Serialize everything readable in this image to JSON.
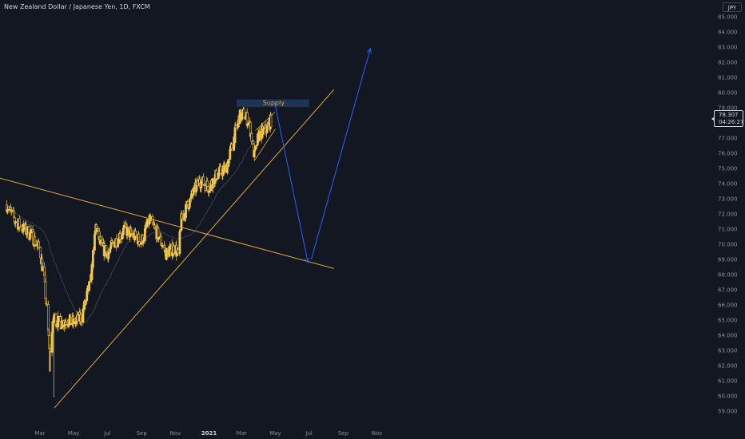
{
  "header": {
    "symbol_title": "New Zealand Dollar / Japanese Yen, 1D, FXCM"
  },
  "price_scale": {
    "currency": "JPY",
    "last_price": "78.307",
    "countdown": "04:26:27"
  },
  "colors": {
    "background": "#131722",
    "candle": "#f7c948",
    "trendline": "#e0a93a",
    "moving_average": "#2a3140",
    "zone_fill": "#1e3a5f",
    "zone_text": "#e0a93a",
    "projection": "#2962ff",
    "axis_text": "#8a8f9c"
  },
  "chart_data": {
    "type": "line",
    "title": "New Zealand Dollar / Japanese Yen, 1D, FXCM",
    "xlabel": "",
    "ylabel": "",
    "x_ticks": [
      "Mar",
      "May",
      "Jul",
      "Sep",
      "Nov",
      "2021",
      "Mar",
      "May",
      "Jul",
      "Sep",
      "Nov"
    ],
    "y_ticks": [
      "59.000",
      "60.000",
      "61.000",
      "62.000",
      "63.000",
      "64.000",
      "65.000",
      "66.000",
      "67.000",
      "68.000",
      "69.000",
      "70.000",
      "71.000",
      "72.000",
      "73.000",
      "74.000",
      "75.000",
      "76.000",
      "77.000",
      "78.000",
      "79.000",
      "80.000",
      "81.000",
      "82.000",
      "83.000",
      "84.000",
      "85.000"
    ],
    "ylim": [
      58.6,
      85.4
    ],
    "grid": false,
    "series": [
      {
        "values": [
          [
            "2020-01-01",
            72.6
          ],
          [
            "2020-01-15",
            71.6
          ],
          [
            "2020-02-01",
            71.0
          ],
          [
            "2020-02-15",
            70.6
          ],
          [
            "2020-03-01",
            69.6
          ],
          [
            "2020-03-09",
            67.6
          ],
          [
            "2020-03-19",
            62.8
          ],
          [
            "2020-03-26",
            65.2
          ],
          [
            "2020-04-05",
            64.8
          ],
          [
            "2020-04-20",
            65.0
          ],
          [
            "2020-05-01",
            64.8
          ],
          [
            "2020-05-15",
            65.2
          ],
          [
            "2020-06-01",
            67.6
          ],
          [
            "2020-06-10",
            71.2
          ],
          [
            "2020-06-20",
            69.8
          ],
          [
            "2020-07-01",
            69.4
          ],
          [
            "2020-07-15",
            70.2
          ],
          [
            "2020-08-01",
            71.0
          ],
          [
            "2020-08-15",
            70.6
          ],
          [
            "2020-09-01",
            70.2
          ],
          [
            "2020-09-15",
            71.6
          ],
          [
            "2020-10-01",
            70.6
          ],
          [
            "2020-10-15",
            69.4
          ],
          [
            "2020-11-01",
            69.8
          ],
          [
            "2020-11-06",
            69.2
          ],
          [
            "2020-11-12",
            71.6
          ],
          [
            "2020-12-01",
            73.2
          ],
          [
            "2020-12-15",
            74.2
          ],
          [
            "2021-01-01",
            73.8
          ],
          [
            "2021-01-15",
            74.6
          ],
          [
            "2021-02-01",
            75.0
          ],
          [
            "2021-02-15",
            77.0
          ],
          [
            "2021-02-25",
            78.4
          ],
          [
            "2021-03-05",
            78.6
          ],
          [
            "2021-03-15",
            78.0
          ],
          [
            "2021-03-24",
            75.8
          ],
          [
            "2021-04-01",
            77.2
          ],
          [
            "2021-04-15",
            77.6
          ],
          [
            "2021-04-25",
            78.307
          ]
        ]
      }
    ],
    "annotations": {
      "supply_zone": {
        "label": "Supply",
        "x_start": "2021-02-20",
        "x_end": "2021-07-01",
        "y_low": 79.05,
        "y_high": 79.55
      },
      "descending_trendline": [
        [
          "2019-12-15",
          74.4
        ],
        [
          "2021-08-15",
          68.4
        ]
      ],
      "ascending_trendline": [
        [
          "2020-03-27",
          59.2
        ],
        [
          "2021-08-15",
          80.2
        ]
      ],
      "wedge_upper": [
        [
          "2021-03-26",
          77.5
        ],
        [
          "2021-04-30",
          78.7
        ]
      ],
      "wedge_lower": [
        [
          "2021-03-24",
          75.5
        ],
        [
          "2021-05-01",
          77.6
        ]
      ],
      "projection_path": [
        [
          "2021-04-30",
          79.3
        ],
        [
          "2021-06-29",
          68.8
        ],
        [
          "2021-07-05",
          69.0
        ],
        [
          "2021-10-20",
          82.9
        ]
      ]
    }
  }
}
